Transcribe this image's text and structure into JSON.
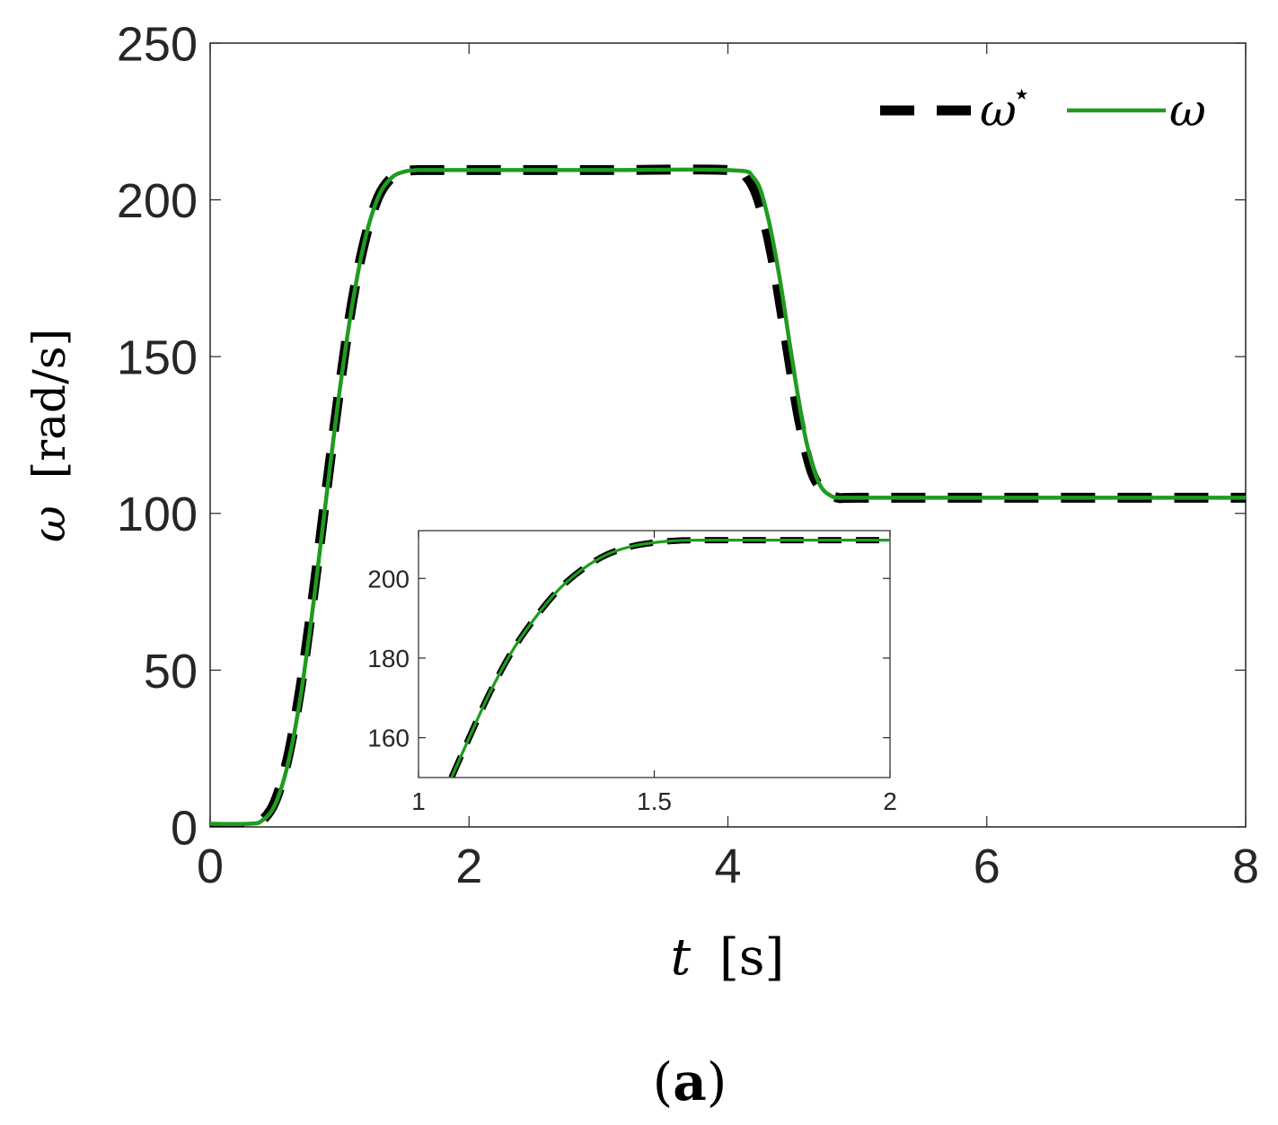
{
  "chart_data": [
    {
      "type": "line",
      "panel": "main",
      "xlabel": "t [s]",
      "ylabel": "ω [rad/s]",
      "xlim": [
        0,
        8
      ],
      "ylim": [
        0,
        250
      ],
      "xticks": [
        "0",
        "2",
        "4",
        "6",
        "8"
      ],
      "yticks": [
        "0",
        "50",
        "100",
        "150",
        "200",
        "250"
      ],
      "grid": false,
      "legend": "top-right",
      "series": [
        {
          "name": "ω*",
          "style": "dashed",
          "color": "#000000",
          "x": [
            0,
            0.3,
            0.4,
            0.5,
            0.6,
            0.7,
            0.8,
            0.9,
            1.0,
            1.1,
            1.2,
            1.3,
            1.4,
            1.5,
            1.6,
            1.8,
            2.0,
            3.0,
            4.0,
            4.15,
            4.25,
            4.35,
            4.45,
            4.55,
            4.65,
            4.75,
            4.85,
            5.0,
            6.0,
            8.0
          ],
          "y": [
            0,
            0,
            2,
            8,
            22,
            45,
            75,
            108,
            140,
            168,
            188,
            201,
            207,
            209,
            209.5,
            209.5,
            209.5,
            209.5,
            209.5,
            207,
            198,
            180,
            155,
            130,
            113,
            107,
            105,
            105,
            105,
            105
          ]
        },
        {
          "name": "ω",
          "style": "solid",
          "color": "#1f9c1f",
          "x": [
            0,
            0.3,
            0.4,
            0.5,
            0.6,
            0.7,
            0.8,
            0.9,
            1.0,
            1.1,
            1.2,
            1.3,
            1.4,
            1.5,
            1.6,
            1.8,
            2.0,
            3.0,
            4.0,
            4.2,
            4.3,
            4.4,
            4.5,
            4.6,
            4.7,
            4.8,
            4.9,
            5.0,
            6.0,
            8.0
          ],
          "y": [
            1,
            1,
            2,
            7,
            20,
            42,
            72,
            106,
            139,
            167,
            188,
            201,
            207,
            209,
            209.5,
            209.5,
            209.5,
            209.5,
            209.5,
            207,
            196,
            175,
            148,
            124,
            110,
            105.5,
            105,
            105,
            105,
            105
          ]
        }
      ]
    },
    {
      "type": "line",
      "panel": "inset",
      "xlim": [
        1,
        2
      ],
      "ylim": [
        150,
        212
      ],
      "xticks": [
        "1",
        "1.5",
        "2"
      ],
      "yticks": [
        "160",
        "180",
        "200"
      ],
      "grid": false,
      "series": [
        {
          "name": "ω*",
          "style": "dashed",
          "color": "#000000",
          "x": [
            1.07,
            1.1,
            1.15,
            1.2,
            1.25,
            1.3,
            1.35,
            1.4,
            1.45,
            1.5,
            1.55,
            1.6,
            1.7,
            1.8,
            2.0
          ],
          "y": [
            150,
            158,
            171,
            182,
            190.5,
            197.5,
            202.5,
            206,
            208,
            209,
            209.5,
            209.6,
            209.6,
            209.6,
            209.6
          ]
        },
        {
          "name": "ω",
          "style": "solid",
          "color": "#1f9c1f",
          "x": [
            1.07,
            1.1,
            1.15,
            1.2,
            1.25,
            1.3,
            1.35,
            1.4,
            1.45,
            1.5,
            1.55,
            1.6,
            1.7,
            1.8,
            2.0
          ],
          "y": [
            150,
            158,
            171,
            182,
            190.5,
            197.5,
            202.5,
            206,
            208,
            209,
            209.5,
            209.6,
            209.6,
            209.6,
            209.6
          ]
        }
      ]
    }
  ],
  "legend": {
    "ref_label": "ω",
    "ref_superscript": "⋆",
    "meas_label": "ω"
  },
  "axis_labels": {
    "x_var": "t",
    "x_unit": "[s]",
    "y_var": "ω",
    "y_unit": "[rad/s]"
  },
  "caption": {
    "open": "(",
    "letter": "a",
    "close": ")"
  },
  "colors": {
    "reference": "#000000",
    "measured": "#1f9c1f",
    "axes": "#262626"
  }
}
